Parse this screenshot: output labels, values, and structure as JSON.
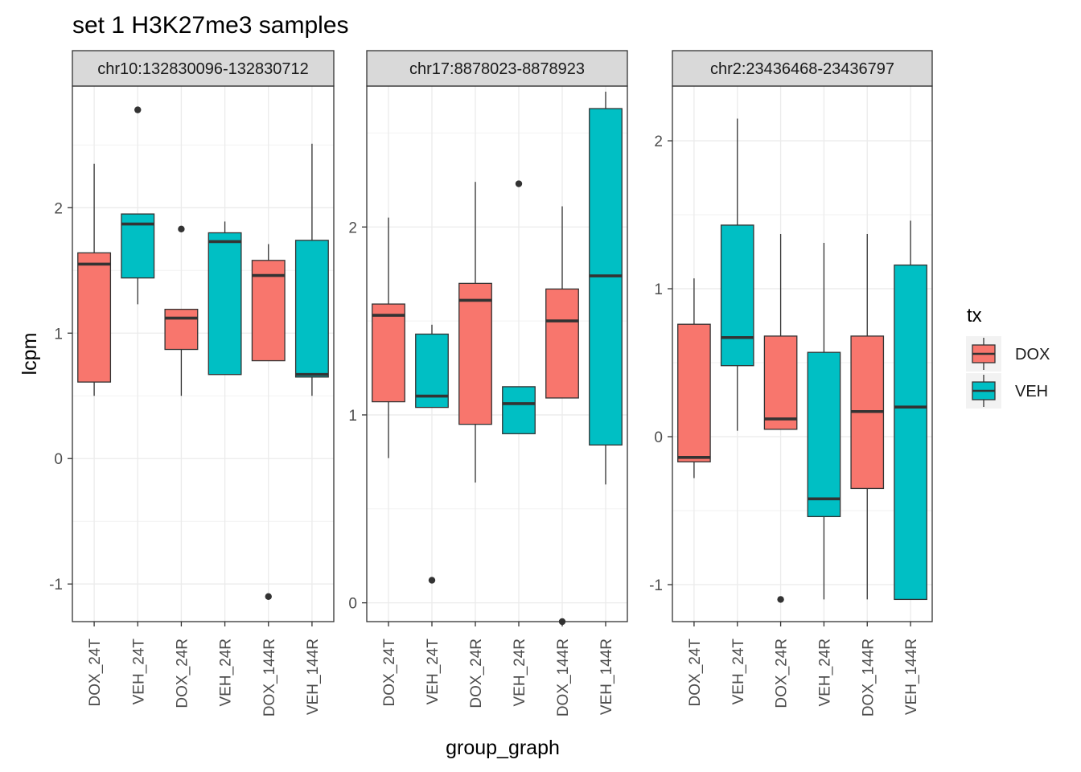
{
  "chart_data": {
    "type": "boxplot",
    "title": "set 1 H3K27me3 samples",
    "xlabel": "group_graph",
    "ylabel": "lcpm",
    "categories": [
      "DOX_24T",
      "VEH_24T",
      "DOX_24R",
      "VEH_24R",
      "DOX_144R",
      "VEH_144R"
    ],
    "legend": {
      "title": "tx",
      "position": "right",
      "entries": [
        {
          "label": "DOX",
          "color": "#F8766D"
        },
        {
          "label": "VEH",
          "color": "#00BFC4"
        }
      ]
    },
    "panels": [
      {
        "strip": "chr10:132830096-132830712",
        "ylim": [
          -1.3,
          2.97
        ],
        "yticks": [
          -1,
          0,
          1,
          2
        ],
        "ytick_labels": [
          "-1",
          "0",
          "1",
          "2"
        ],
        "boxes": [
          {
            "category": "DOX_24T",
            "tx": "DOX",
            "q1": 0.61,
            "median": 1.55,
            "q3": 1.64,
            "whisker_low": 0.5,
            "whisker_high": 2.35,
            "outliers": []
          },
          {
            "category": "VEH_24T",
            "tx": "VEH",
            "q1": 1.44,
            "median": 1.87,
            "q3": 1.95,
            "whisker_low": 1.23,
            "whisker_high": 1.95,
            "outliers": [
              2.78
            ]
          },
          {
            "category": "DOX_24R",
            "tx": "DOX",
            "q1": 0.87,
            "median": 1.12,
            "q3": 1.19,
            "whisker_low": 0.5,
            "whisker_high": 1.19,
            "outliers": [
              1.83
            ]
          },
          {
            "category": "VEH_24R",
            "tx": "VEH",
            "q1": 0.67,
            "median": 1.73,
            "q3": 1.8,
            "whisker_low": 0.67,
            "whisker_high": 1.89,
            "outliers": []
          },
          {
            "category": "DOX_144R",
            "tx": "DOX",
            "q1": 0.78,
            "median": 1.46,
            "q3": 1.58,
            "whisker_low": 0.78,
            "whisker_high": 1.71,
            "outliers": [
              -1.1
            ]
          },
          {
            "category": "VEH_144R",
            "tx": "VEH",
            "q1": 0.65,
            "median": 0.67,
            "q3": 1.74,
            "whisker_low": 0.5,
            "whisker_high": 2.51,
            "outliers": []
          }
        ]
      },
      {
        "strip": "chr17:8878023-8878923",
        "ylim": [
          -0.1,
          2.75
        ],
        "yticks": [
          0,
          1,
          2
        ],
        "ytick_labels": [
          "0",
          "1",
          "2"
        ],
        "boxes": [
          {
            "category": "DOX_24T",
            "tx": "DOX",
            "q1": 1.07,
            "median": 1.53,
            "q3": 1.59,
            "whisker_low": 0.77,
            "whisker_high": 2.05,
            "outliers": []
          },
          {
            "category": "VEH_24T",
            "tx": "VEH",
            "q1": 1.04,
            "median": 1.1,
            "q3": 1.43,
            "whisker_low": 1.04,
            "whisker_high": 1.48,
            "outliers": [
              0.12
            ]
          },
          {
            "category": "DOX_24R",
            "tx": "DOX",
            "q1": 0.95,
            "median": 1.61,
            "q3": 1.7,
            "whisker_low": 0.64,
            "whisker_high": 2.24,
            "outliers": []
          },
          {
            "category": "VEH_24R",
            "tx": "VEH",
            "q1": 0.9,
            "median": 1.06,
            "q3": 1.15,
            "whisker_low": 0.9,
            "whisker_high": 1.15,
            "outliers": [
              2.23
            ]
          },
          {
            "category": "DOX_144R",
            "tx": "DOX",
            "q1": 1.09,
            "median": 1.5,
            "q3": 1.67,
            "whisker_low": 1.09,
            "whisker_high": 2.11,
            "outliers": [
              -0.1
            ]
          },
          {
            "category": "VEH_144R",
            "tx": "VEH",
            "q1": 0.84,
            "median": 1.74,
            "q3": 2.63,
            "whisker_low": 0.63,
            "whisker_high": 2.72,
            "outliers": []
          }
        ]
      },
      {
        "strip": "chr2:23436468-23436797",
        "ylim": [
          -1.25,
          2.37
        ],
        "yticks": [
          -1,
          0,
          1,
          2
        ],
        "ytick_labels": [
          "-1",
          "0",
          "1",
          "2"
        ],
        "boxes": [
          {
            "category": "DOX_24T",
            "tx": "DOX",
            "q1": -0.17,
            "median": -0.14,
            "q3": 0.76,
            "whisker_low": -0.28,
            "whisker_high": 1.07,
            "outliers": []
          },
          {
            "category": "VEH_24T",
            "tx": "VEH",
            "q1": 0.48,
            "median": 0.67,
            "q3": 1.43,
            "whisker_low": 0.04,
            "whisker_high": 2.15,
            "outliers": []
          },
          {
            "category": "DOX_24R",
            "tx": "DOX",
            "q1": 0.05,
            "median": 0.12,
            "q3": 0.68,
            "whisker_low": 0.05,
            "whisker_high": 1.37,
            "outliers": [
              -1.1
            ]
          },
          {
            "category": "VEH_24R",
            "tx": "VEH",
            "q1": -0.54,
            "median": -0.42,
            "q3": 0.57,
            "whisker_low": -1.1,
            "whisker_high": 1.31,
            "outliers": []
          },
          {
            "category": "DOX_144R",
            "tx": "DOX",
            "q1": -0.35,
            "median": 0.17,
            "q3": 0.68,
            "whisker_low": -1.1,
            "whisker_high": 1.37,
            "outliers": []
          },
          {
            "category": "VEH_144R",
            "tx": "VEH",
            "q1": -1.1,
            "median": 0.2,
            "q3": 1.16,
            "whisker_low": -1.1,
            "whisker_high": 1.46,
            "outliers": []
          }
        ]
      }
    ]
  }
}
